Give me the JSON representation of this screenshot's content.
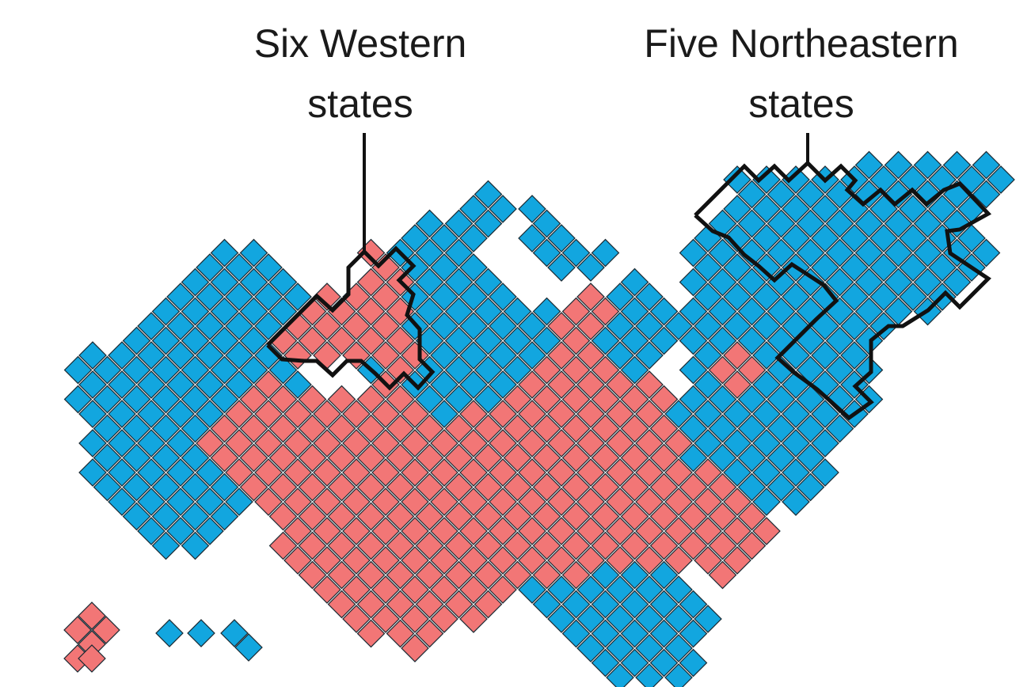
{
  "annotations": [
    {
      "lines": [
        "Six Western",
        "states"
      ]
    },
    {
      "lines": [
        "Five Northeastern",
        "states"
      ]
    }
  ]
}
